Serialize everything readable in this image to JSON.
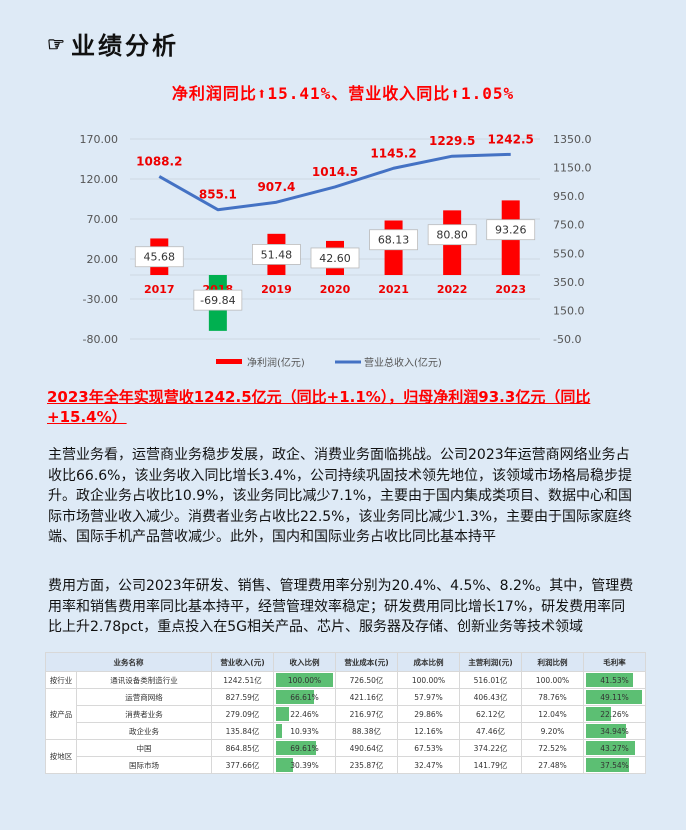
{
  "header": {
    "icon": "pointing-hand-icon",
    "title": "业绩分析",
    "headline": "净利润同比⬆15.41%、营业收入同比⬆1.05%"
  },
  "chart_data": {
    "type": "bar+line",
    "categories": [
      "2017",
      "2018",
      "2019",
      "2020",
      "2021",
      "2022",
      "2023"
    ],
    "series": [
      {
        "name": "净利润(亿元)",
        "type": "bar",
        "axis": "left",
        "values": [
          45.68,
          -69.84,
          51.48,
          42.6,
          68.13,
          80.8,
          93.26
        ],
        "color_positive": "#ff0000",
        "color_negative": "#00b050"
      },
      {
        "name": "营业总收入(亿元)",
        "type": "line",
        "axis": "right",
        "values": [
          1088.2,
          855.1,
          907.4,
          1014.5,
          1145.2,
          1229.5,
          1242.5
        ],
        "color": "#4472c4"
      }
    ],
    "left_axis": {
      "ticks": [
        "170.00",
        "120.00",
        "70.00",
        "20.00",
        "-30.00",
        "-80.00"
      ],
      "range": [
        -80,
        170
      ]
    },
    "right_axis": {
      "ticks": [
        "1350.0",
        "1150.0",
        "950.0",
        "750.0",
        "550.0",
        "350.0",
        "150.0",
        "-50.0"
      ],
      "range": [
        -50,
        1350
      ]
    },
    "bar_labels": [
      "45.68",
      "-69.84",
      "51.48",
      "42.60",
      "68.13",
      "80.80",
      "93.26"
    ],
    "line_labels": [
      "1088.2",
      "855.1",
      "907.4",
      "1014.5",
      "1145.2",
      "1229.5",
      "1242.5"
    ],
    "legend": [
      "净利润(亿元)",
      "营业总收入(亿元)"
    ],
    "legend_position": "bottom",
    "grid": true
  },
  "summary": "2023年全年实现营收1242.5亿元（同比+1.1%），归母净利润93.3亿元（同比+15.4%）",
  "paragraphs": [
    "主营业务看，运营商业务稳步发展，政企、消费业务面临挑战。公司2023年运营商网络业务占收比66.6%，该业务收入同比增长3.4%，公司持续巩固技术领先地位，该领域市场格局稳步提升。政企业务占收比10.9%，该业务同比减少7.1%，主要由于国内集成类项目、数据中心和国际市场营业收入减少。消费者业务占收比22.5%，该业务同比减少1.3%，主要由于国际家庭终端、国际手机产品营收减少。此外，国内和国际业务占收比同比基本持平",
    "费用方面，公司2023年研发、销售、管理费用率分别为20.4%、4.5%、8.2%。其中，管理费用率和销售费用率同比基本持平，经营管理效率稳定；研发费用同比增长17%，研发费用率同比上升2.78pct，重点投入在5G相关产品、芯片、服务器及存储、创新业务等技术领域"
  ],
  "table": {
    "headers": [
      "业务名称",
      "营业收入(元)",
      "收入比例",
      "营业成本(元)",
      "成本比例",
      "主营利润(元)",
      "利润比例",
      "毛利率"
    ],
    "groups": [
      {
        "label": "按行业",
        "rows": [
          {
            "name": "通讯设备类制造行业",
            "revenue": "1242.51亿",
            "rev_ratio": "100.00%",
            "rev_pct": 100,
            "cost": "726.50亿",
            "cost_ratio": "100.00%",
            "profit": "516.01亿",
            "profit_ratio": "100.00%",
            "margin": "41.53%",
            "margin_pct": 41.53
          }
        ]
      },
      {
        "label": "按产品",
        "rows": [
          {
            "name": "运营商网络",
            "revenue": "827.59亿",
            "rev_ratio": "66.61%",
            "rev_pct": 66.61,
            "cost": "421.16亿",
            "cost_ratio": "57.97%",
            "profit": "406.43亿",
            "profit_ratio": "78.76%",
            "margin": "49.11%",
            "margin_pct": 49.11
          },
          {
            "name": "消费者业务",
            "revenue": "279.09亿",
            "rev_ratio": "22.46%",
            "rev_pct": 22.46,
            "cost": "216.97亿",
            "cost_ratio": "29.86%",
            "profit": "62.12亿",
            "profit_ratio": "12.04%",
            "margin": "22.26%",
            "margin_pct": 22.26
          },
          {
            "name": "政企业务",
            "revenue": "135.84亿",
            "rev_ratio": "10.93%",
            "rev_pct": 10.93,
            "cost": "88.38亿",
            "cost_ratio": "12.16%",
            "profit": "47.46亿",
            "profit_ratio": "9.20%",
            "margin": "34.94%",
            "margin_pct": 34.94
          }
        ]
      },
      {
        "label": "按地区",
        "rows": [
          {
            "name": "中国",
            "revenue": "864.85亿",
            "rev_ratio": "69.61%",
            "rev_pct": 69.61,
            "cost": "490.64亿",
            "cost_ratio": "67.53%",
            "profit": "374.22亿",
            "profit_ratio": "72.52%",
            "margin": "43.27%",
            "margin_pct": 43.27
          },
          {
            "name": "国际市场",
            "revenue": "377.66亿",
            "rev_ratio": "30.39%",
            "rev_pct": 30.39,
            "cost": "235.87亿",
            "cost_ratio": "32.47%",
            "profit": "141.79亿",
            "profit_ratio": "27.48%",
            "margin": "37.54%",
            "margin_pct": 37.54
          }
        ]
      }
    ]
  },
  "colors": {
    "accent_red": "#ff0000",
    "bar_green": "#00b050",
    "line_blue": "#4472c4",
    "table_green": "#5cbf73",
    "background": "#deeaf6"
  }
}
